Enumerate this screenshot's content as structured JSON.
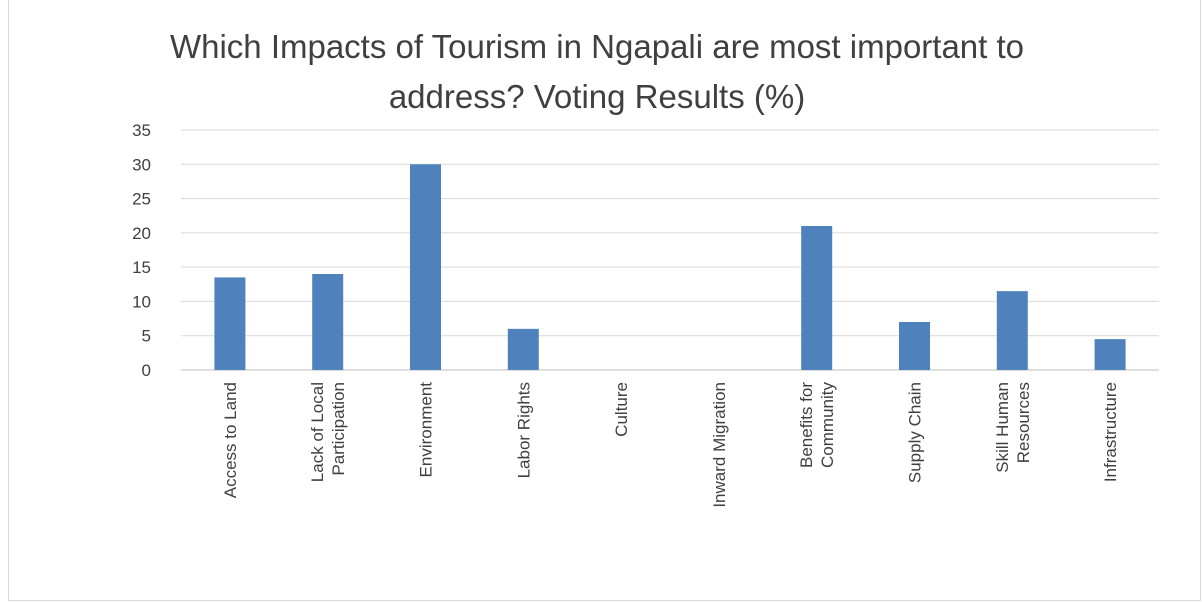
{
  "chart_data": {
    "type": "bar",
    "title": "Which Impacts of Tourism in Ngapali are most important to\naddress? Voting Results (%)",
    "categories": [
      [
        "Access to Land"
      ],
      [
        "Lack of Local",
        "Participation"
      ],
      [
        "Environment"
      ],
      [
        "Labor Rights"
      ],
      [
        "Culture"
      ],
      [
        "Inward Migration"
      ],
      [
        "Benefits for",
        "Community"
      ],
      [
        "Supply Chain"
      ],
      [
        "Skill Human",
        "Resources"
      ],
      [
        "Infrastructure"
      ]
    ],
    "values": [
      13.5,
      14,
      30,
      6,
      0,
      0,
      21,
      7,
      11.5,
      4.5
    ],
    "xlabel": "",
    "ylabel": "",
    "ylim": [
      0,
      35
    ],
    "yticks": [
      0,
      5,
      10,
      15,
      20,
      25,
      30,
      35
    ],
    "grid": true,
    "legend": "none",
    "colors": {
      "bar": "#4f81bd",
      "grid": "#d9d9d9",
      "text": "#404040"
    }
  }
}
